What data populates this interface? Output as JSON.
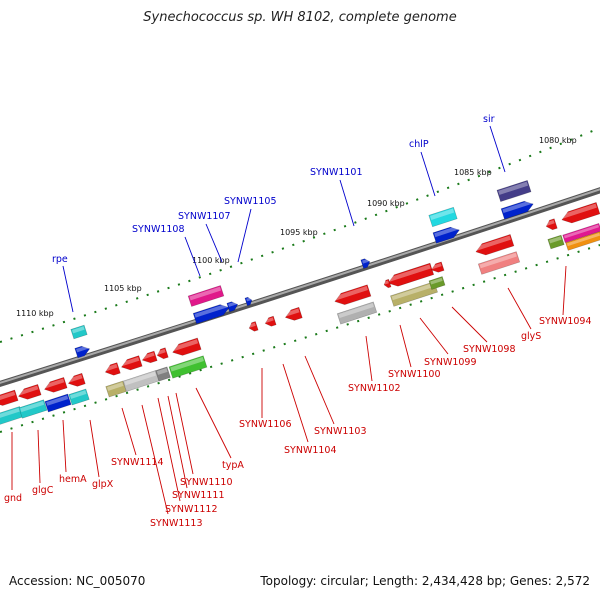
{
  "title": "Synechococcus sp. WH 8102, complete genome",
  "footer": {
    "accession": "Accession: NC_005070",
    "topology": "Topology: circular; Length: 2,434,428 bp; Genes: 2,572"
  },
  "colors": {
    "forward_label": "#0000cc",
    "reverse_label": "#cc0000",
    "backbone": "#7a7a7a",
    "tick": "#1a7a1a"
  },
  "kbp_labels": [
    "1110 kbp",
    "1105 kbp",
    "1100 kbp",
    "1095 kbp",
    "1090 kbp",
    "1085 kbp",
    "1080 kbp"
  ],
  "forward_labels": [
    "rpe",
    "SYNW1108",
    "SYNW1107",
    "SYNW1105",
    "SYNW1101",
    "chlP",
    "sir"
  ],
  "reverse_labels": [
    "gnd",
    "glgC",
    "hemA",
    "glpX",
    "SYNW1114",
    "SYNW1113",
    "SYNW1112",
    "SYNW1111",
    "SYNW1110",
    "typA",
    "SYNW1106",
    "SYNW1104",
    "SYNW1103",
    "SYNW1102",
    "SYNW1100",
    "SYNW1099",
    "SYNW1098",
    "glyS",
    "SYNW1094"
  ]
}
